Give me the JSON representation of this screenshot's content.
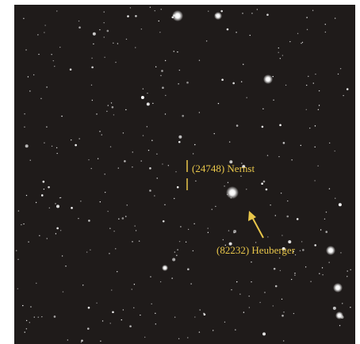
{
  "labels": {
    "nernst": "(24748) Nernst",
    "heuberger": "(82232) Heuberger"
  }
}
